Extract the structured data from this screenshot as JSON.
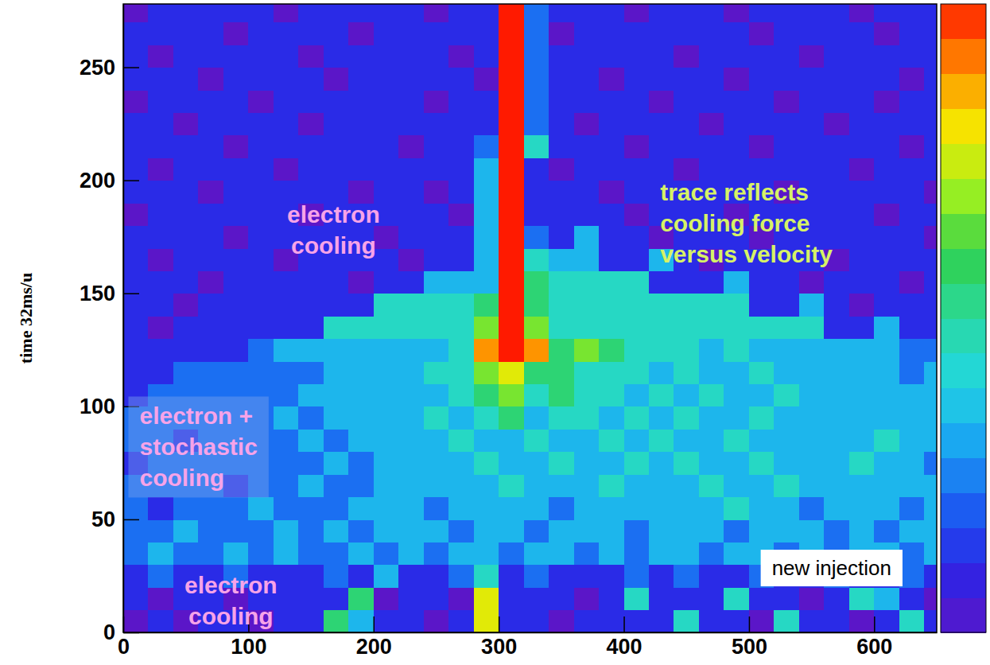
{
  "chart_data": {
    "type": "heatmap",
    "ylabel": "time 32ms/u",
    "xlim": [
      0,
      650
    ],
    "ylim": [
      0,
      278
    ],
    "xticks": [
      0,
      100,
      200,
      300,
      400,
      500,
      600
    ],
    "yticks": [
      0,
      50,
      100,
      150,
      200,
      250
    ],
    "xbins": [
      0,
      20,
      40,
      60,
      80,
      100,
      120,
      140,
      160,
      180,
      200,
      220,
      240,
      260,
      280,
      300,
      320,
      340,
      360,
      380,
      400,
      420,
      440,
      460,
      480,
      500,
      520,
      540,
      560,
      580,
      600,
      620,
      640,
      660
    ],
    "ybins": [
      0,
      10,
      20,
      30,
      40,
      50,
      60,
      70,
      80,
      90,
      100,
      110,
      120,
      130,
      140,
      150,
      160,
      170,
      180,
      190,
      200,
      210,
      220,
      230,
      240,
      250,
      260,
      270,
      280
    ],
    "z": [
      [
        0,
        1,
        0,
        1,
        1,
        0,
        1,
        1,
        5,
        3,
        1,
        1,
        0,
        1,
        7,
        1,
        1,
        0,
        1,
        1,
        1,
        1,
        4,
        1,
        1,
        0,
        4,
        1,
        1,
        0,
        1,
        4,
        1
      ],
      [
        1,
        0,
        1,
        1,
        0,
        1,
        1,
        1,
        1,
        5,
        0,
        1,
        1,
        0,
        7,
        1,
        1,
        1,
        0,
        1,
        4,
        1,
        1,
        1,
        4,
        1,
        1,
        0,
        1,
        4,
        3,
        1,
        0
      ],
      [
        1,
        2,
        1,
        1,
        2,
        1,
        1,
        1,
        2,
        1,
        3,
        1,
        1,
        2,
        4,
        1,
        2,
        1,
        1,
        1,
        2,
        1,
        2,
        1,
        1,
        2,
        1,
        1,
        2,
        1,
        1,
        2,
        1
      ],
      [
        2,
        3,
        2,
        2,
        3,
        2,
        3,
        2,
        2,
        3,
        2,
        3,
        2,
        3,
        3,
        2,
        3,
        3,
        2,
        3,
        2,
        3,
        3,
        2,
        3,
        3,
        2,
        3,
        2,
        3,
        3,
        2,
        3
      ],
      [
        2,
        2,
        3,
        2,
        2,
        2,
        3,
        2,
        3,
        2,
        3,
        3,
        3,
        2,
        3,
        3,
        2,
        3,
        3,
        3,
        2,
        3,
        3,
        3,
        2,
        3,
        3,
        3,
        2,
        3,
        2,
        3,
        3
      ],
      [
        2,
        1,
        2,
        2,
        2,
        3,
        2,
        2,
        2,
        3,
        3,
        3,
        2,
        3,
        3,
        3,
        3,
        2,
        3,
        3,
        3,
        3,
        3,
        3,
        4,
        3,
        3,
        2,
        3,
        3,
        3,
        2,
        3
      ],
      [
        2,
        2,
        2,
        2,
        1,
        2,
        2,
        3,
        2,
        2,
        3,
        3,
        3,
        3,
        3,
        4,
        3,
        3,
        3,
        4,
        3,
        3,
        3,
        4,
        3,
        3,
        4,
        3,
        3,
        3,
        3,
        3,
        3
      ],
      [
        1,
        2,
        2,
        2,
        2,
        2,
        2,
        2,
        3,
        2,
        3,
        3,
        3,
        3,
        4,
        3,
        3,
        4,
        3,
        3,
        4,
        3,
        4,
        3,
        3,
        4,
        3,
        3,
        3,
        4,
        3,
        3,
        2
      ],
      [
        2,
        2,
        1,
        2,
        2,
        2,
        2,
        3,
        2,
        3,
        3,
        3,
        3,
        4,
        3,
        3,
        4,
        3,
        3,
        4,
        3,
        4,
        3,
        3,
        4,
        3,
        3,
        3,
        3,
        3,
        4,
        3,
        3
      ],
      [
        2,
        2,
        2,
        2,
        2,
        2,
        3,
        2,
        3,
        3,
        3,
        3,
        4,
        3,
        4,
        5,
        3,
        4,
        4,
        3,
        4,
        3,
        4,
        3,
        3,
        4,
        3,
        3,
        3,
        3,
        3,
        3,
        3
      ],
      [
        1,
        2,
        2,
        2,
        2,
        2,
        2,
        3,
        3,
        3,
        3,
        3,
        3,
        4,
        5,
        6,
        4,
        5,
        4,
        4,
        3,
        4,
        3,
        4,
        3,
        3,
        4,
        3,
        3,
        3,
        3,
        3,
        3
      ],
      [
        1,
        1,
        2,
        2,
        2,
        2,
        2,
        2,
        3,
        3,
        3,
        3,
        4,
        4,
        6,
        7,
        5,
        5,
        4,
        4,
        4,
        3,
        4,
        3,
        3,
        4,
        3,
        3,
        3,
        3,
        3,
        2,
        3
      ],
      [
        1,
        1,
        1,
        1,
        1,
        2,
        3,
        3,
        3,
        3,
        3,
        3,
        3,
        4,
        8,
        9,
        8,
        5,
        6,
        5,
        4,
        4,
        4,
        3,
        4,
        3,
        3,
        3,
        3,
        3,
        3,
        2,
        2
      ],
      [
        1,
        0,
        1,
        1,
        1,
        1,
        1,
        1,
        4,
        4,
        4,
        4,
        4,
        4,
        6,
        9,
        6,
        4,
        4,
        4,
        4,
        4,
        4,
        4,
        4,
        4,
        4,
        4,
        1,
        1,
        3,
        1,
        1
      ],
      [
        1,
        1,
        0,
        1,
        1,
        1,
        1,
        1,
        1,
        1,
        4,
        4,
        4,
        4,
        5,
        9,
        5,
        4,
        4,
        4,
        4,
        4,
        4,
        4,
        4,
        1,
        1,
        3,
        1,
        0,
        1,
        1,
        1
      ],
      [
        1,
        1,
        1,
        0,
        1,
        1,
        1,
        1,
        1,
        0,
        1,
        1,
        3,
        3,
        3,
        9,
        5,
        4,
        4,
        4,
        4,
        1,
        1,
        1,
        3,
        1,
        1,
        0,
        1,
        1,
        1,
        0,
        1
      ],
      [
        1,
        0,
        1,
        1,
        1,
        1,
        0,
        1,
        1,
        1,
        1,
        0,
        1,
        1,
        3,
        9,
        4,
        3,
        3,
        1,
        1,
        3,
        1,
        0,
        1,
        1,
        1,
        1,
        0,
        1,
        1,
        1,
        1
      ],
      [
        1,
        1,
        1,
        1,
        0,
        1,
        1,
        1,
        1,
        1,
        0,
        1,
        1,
        1,
        3,
        9,
        2,
        1,
        3,
        1,
        1,
        0,
        1,
        1,
        1,
        0,
        1,
        1,
        1,
        1,
        1,
        1,
        0
      ],
      [
        0,
        1,
        1,
        1,
        1,
        1,
        1,
        0,
        1,
        1,
        1,
        1,
        1,
        0,
        3,
        9,
        1,
        1,
        1,
        1,
        0,
        1,
        1,
        1,
        0,
        1,
        1,
        1,
        1,
        1,
        0,
        1,
        1
      ],
      [
        1,
        1,
        1,
        0,
        1,
        1,
        1,
        1,
        1,
        0,
        1,
        1,
        0,
        1,
        3,
        9,
        1,
        1,
        1,
        0,
        1,
        1,
        1,
        1,
        1,
        1,
        0,
        1,
        1,
        1,
        1,
        1,
        0
      ],
      [
        1,
        0,
        1,
        1,
        1,
        1,
        0,
        1,
        1,
        1,
        1,
        1,
        1,
        1,
        3,
        9,
        1,
        0,
        1,
        1,
        1,
        1,
        0,
        1,
        1,
        1,
        1,
        1,
        1,
        0,
        1,
        1,
        1
      ],
      [
        1,
        1,
        1,
        1,
        0,
        1,
        1,
        1,
        1,
        1,
        1,
        0,
        1,
        1,
        2,
        9,
        4,
        1,
        1,
        1,
        0,
        1,
        1,
        1,
        1,
        0,
        1,
        1,
        1,
        1,
        1,
        0,
        1
      ],
      [
        1,
        1,
        0,
        1,
        1,
        1,
        1,
        0,
        1,
        1,
        1,
        1,
        1,
        1,
        1,
        9,
        2,
        1,
        0,
        1,
        1,
        1,
        1,
        0,
        1,
        1,
        1,
        1,
        0,
        1,
        1,
        1,
        1
      ],
      [
        0,
        1,
        1,
        1,
        1,
        0,
        1,
        1,
        1,
        1,
        1,
        1,
        0,
        1,
        1,
        9,
        2,
        1,
        1,
        1,
        1,
        0,
        1,
        1,
        1,
        1,
        0,
        1,
        1,
        1,
        0,
        1,
        1
      ],
      [
        1,
        1,
        1,
        0,
        1,
        1,
        1,
        1,
        0,
        1,
        1,
        1,
        1,
        1,
        0,
        9,
        2,
        1,
        1,
        0,
        1,
        1,
        1,
        1,
        0,
        1,
        1,
        1,
        1,
        1,
        1,
        0,
        1
      ],
      [
        1,
        0,
        1,
        1,
        1,
        1,
        1,
        0,
        1,
        1,
        1,
        1,
        1,
        0,
        1,
        9,
        2,
        1,
        1,
        1,
        1,
        1,
        0,
        1,
        1,
        1,
        1,
        0,
        1,
        1,
        1,
        1,
        1
      ],
      [
        1,
        1,
        1,
        1,
        0,
        1,
        1,
        1,
        1,
        0,
        1,
        1,
        1,
        1,
        1,
        9,
        2,
        0,
        1,
        1,
        1,
        1,
        1,
        1,
        1,
        0,
        1,
        1,
        1,
        1,
        0,
        1,
        1
      ],
      [
        0,
        1,
        1,
        1,
        1,
        1,
        0,
        1,
        1,
        1,
        1,
        1,
        0,
        1,
        1,
        9,
        2,
        1,
        1,
        1,
        0,
        1,
        1,
        1,
        0,
        1,
        1,
        1,
        1,
        0,
        1,
        1,
        1
      ]
    ],
    "colorbar": {
      "range": [
        0,
        9
      ]
    },
    "annotations": [
      {
        "lines": [
          "electron",
          "cooling"
        ],
        "color": "#f7a3e8"
      },
      {
        "lines": [
          "electron +",
          "stochastic",
          "cooling"
        ],
        "color": "#f7a3e8"
      },
      {
        "lines": [
          "electron",
          "cooling"
        ],
        "color": "#f7a3e8"
      },
      {
        "lines": [
          "trace reflects",
          "cooling force",
          "versus velocity"
        ],
        "color": "#d6f266"
      },
      {
        "lines": [
          "new injection"
        ],
        "color": "#000000"
      }
    ]
  }
}
